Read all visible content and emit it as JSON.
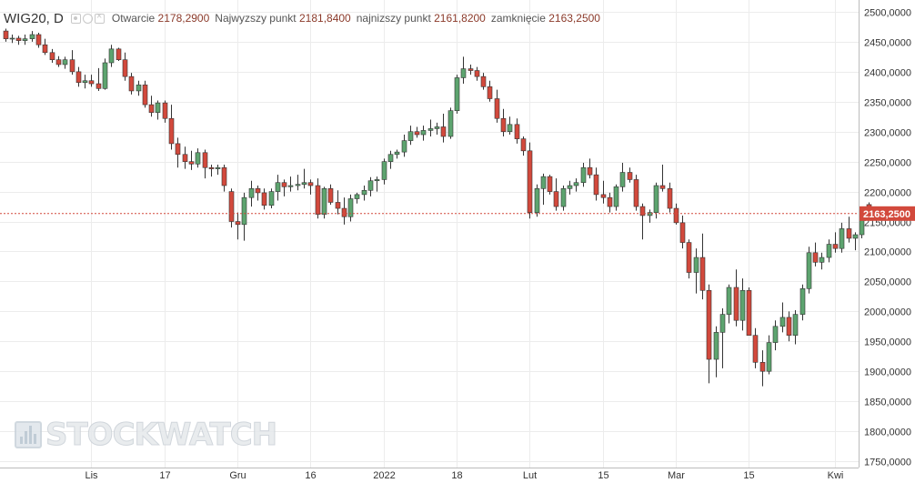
{
  "header": {
    "symbol": "WIG20, D",
    "open_label": "Otwarcie",
    "open_value": "2178,2900",
    "high_label": "Najwyzszy punkt",
    "high_value": "2181,8400",
    "low_label": "najnizszy punkt",
    "low_value": "2161,8200",
    "close_label": "zamknięcie",
    "close_value": "2163,2500"
  },
  "watermark": "STOCKWATCH",
  "colors": {
    "up": "#5da46f",
    "down": "#d2493c",
    "price_line": "#d2493c",
    "grid": "#ececec"
  },
  "chart_data": {
    "type": "candlestick",
    "title": "",
    "ylim": [
      1750,
      2500
    ],
    "yticks": [
      1750,
      1800,
      1850,
      1900,
      1950,
      2000,
      2050,
      2100,
      2150,
      2200,
      2250,
      2300,
      2350,
      2400,
      2450,
      2500
    ],
    "ytick_labels": [
      "1750,0000",
      "1800,0000",
      "1850,0000",
      "1900,0000",
      "1950,0000",
      "2000,0000",
      "2050,0000",
      "2100,0000",
      "2150,0000",
      "2200,0000",
      "2250,0000",
      "2300,0000",
      "2350,0000",
      "2400,0000",
      "2450,0000",
      "2500,0000"
    ],
    "xtick_labels": [
      {
        "label": "Lis",
        "index": 13
      },
      {
        "label": "17",
        "index": 24
      },
      {
        "label": "Gru",
        "index": 35
      },
      {
        "label": "16",
        "index": 46
      },
      {
        "label": "2022",
        "index": 57
      },
      {
        "label": "18",
        "index": 68
      },
      {
        "label": "Lut",
        "index": 79
      },
      {
        "label": "15",
        "index": 90
      },
      {
        "label": "Mar",
        "index": 101
      },
      {
        "label": "15",
        "index": 112
      },
      {
        "label": "Kwi",
        "index": 125
      }
    ],
    "last_price": 2163.25,
    "last_price_label": "2163,2500",
    "candles": [
      [
        2468,
        2472,
        2450,
        2455
      ],
      [
        2455,
        2462,
        2448,
        2456
      ],
      [
        2456,
        2460,
        2445,
        2452
      ],
      [
        2452,
        2462,
        2445,
        2455
      ],
      [
        2455,
        2468,
        2450,
        2462
      ],
      [
        2462,
        2465,
        2440,
        2445
      ],
      [
        2445,
        2455,
        2428,
        2432
      ],
      [
        2432,
        2438,
        2415,
        2420
      ],
      [
        2420,
        2426,
        2408,
        2412
      ],
      [
        2412,
        2425,
        2405,
        2420
      ],
      [
        2420,
        2436,
        2395,
        2400
      ],
      [
        2400,
        2408,
        2375,
        2382
      ],
      [
        2382,
        2395,
        2372,
        2385
      ],
      [
        2385,
        2395,
        2375,
        2380
      ],
      [
        2380,
        2406,
        2368,
        2372
      ],
      [
        2372,
        2422,
        2370,
        2415
      ],
      [
        2415,
        2445,
        2408,
        2438
      ],
      [
        2438,
        2440,
        2418,
        2420
      ],
      [
        2420,
        2432,
        2385,
        2392
      ],
      [
        2392,
        2398,
        2362,
        2368
      ],
      [
        2368,
        2385,
        2360,
        2378
      ],
      [
        2378,
        2385,
        2340,
        2345
      ],
      [
        2345,
        2360,
        2325,
        2332
      ],
      [
        2332,
        2352,
        2320,
        2348
      ],
      [
        2348,
        2352,
        2315,
        2322
      ],
      [
        2322,
        2345,
        2270,
        2280
      ],
      [
        2280,
        2290,
        2240,
        2262
      ],
      [
        2262,
        2275,
        2238,
        2250
      ],
      [
        2250,
        2268,
        2236,
        2246
      ],
      [
        2246,
        2272,
        2240,
        2265
      ],
      [
        2265,
        2270,
        2222,
        2240
      ],
      [
        2240,
        2245,
        2225,
        2238
      ],
      [
        2238,
        2245,
        2228,
        2240
      ],
      [
        2240,
        2245,
        2200,
        2210
      ],
      [
        2200,
        2205,
        2140,
        2150
      ],
      [
        2150,
        2165,
        2120,
        2145
      ],
      [
        2145,
        2198,
        2118,
        2190
      ],
      [
        2190,
        2218,
        2175,
        2205
      ],
      [
        2205,
        2210,
        2185,
        2198
      ],
      [
        2198,
        2205,
        2170,
        2177
      ],
      [
        2177,
        2205,
        2172,
        2200
      ],
      [
        2200,
        2228,
        2185,
        2215
      ],
      [
        2215,
        2220,
        2192,
        2208
      ],
      [
        2208,
        2225,
        2200,
        2210
      ],
      [
        2210,
        2228,
        2202,
        2212
      ],
      [
        2212,
        2238,
        2205,
        2215
      ],
      [
        2215,
        2220,
        2195,
        2210
      ],
      [
        2210,
        2222,
        2155,
        2162
      ],
      [
        2162,
        2208,
        2155,
        2205
      ],
      [
        2205,
        2212,
        2178,
        2182
      ],
      [
        2182,
        2202,
        2162,
        2172
      ],
      [
        2172,
        2190,
        2145,
        2158
      ],
      [
        2158,
        2195,
        2150,
        2188
      ],
      [
        2188,
        2198,
        2180,
        2195
      ],
      [
        2195,
        2210,
        2185,
        2202
      ],
      [
        2202,
        2224,
        2192,
        2218
      ],
      [
        2218,
        2225,
        2200,
        2220
      ],
      [
        2220,
        2255,
        2212,
        2250
      ],
      [
        2250,
        2268,
        2238,
        2262
      ],
      [
        2262,
        2270,
        2255,
        2266
      ],
      [
        2266,
        2295,
        2258,
        2285
      ],
      [
        2285,
        2310,
        2278,
        2300
      ],
      [
        2300,
        2308,
        2290,
        2295
      ],
      [
        2295,
        2310,
        2285,
        2302
      ],
      [
        2302,
        2320,
        2292,
        2305
      ],
      [
        2305,
        2315,
        2295,
        2308
      ],
      [
        2308,
        2330,
        2282,
        2292
      ],
      [
        2292,
        2340,
        2288,
        2335
      ],
      [
        2335,
        2395,
        2330,
        2390
      ],
      [
        2390,
        2425,
        2380,
        2405
      ],
      [
        2405,
        2412,
        2395,
        2402
      ],
      [
        2402,
        2408,
        2385,
        2392
      ],
      [
        2392,
        2398,
        2370,
        2375
      ],
      [
        2375,
        2385,
        2350,
        2355
      ],
      [
        2355,
        2370,
        2315,
        2322
      ],
      [
        2322,
        2338,
        2292,
        2300
      ],
      [
        2300,
        2325,
        2295,
        2312
      ],
      [
        2312,
        2322,
        2280,
        2288
      ],
      [
        2288,
        2292,
        2260,
        2268
      ],
      [
        2268,
        2282,
        2155,
        2165
      ],
      [
        2165,
        2212,
        2158,
        2205
      ],
      [
        2205,
        2230,
        2178,
        2225
      ],
      [
        2225,
        2228,
        2195,
        2200
      ],
      [
        2200,
        2222,
        2168,
        2175
      ],
      [
        2175,
        2210,
        2168,
        2205
      ],
      [
        2205,
        2218,
        2195,
        2210
      ],
      [
        2210,
        2222,
        2200,
        2215
      ],
      [
        2215,
        2248,
        2208,
        2240
      ],
      [
        2240,
        2255,
        2222,
        2228
      ],
      [
        2228,
        2240,
        2185,
        2195
      ],
      [
        2195,
        2218,
        2180,
        2190
      ],
      [
        2190,
        2198,
        2165,
        2175
      ],
      [
        2175,
        2212,
        2168,
        2208
      ],
      [
        2208,
        2248,
        2200,
        2232
      ],
      [
        2232,
        2240,
        2215,
        2220
      ],
      [
        2220,
        2228,
        2168,
        2175
      ],
      [
        2175,
        2180,
        2120,
        2160
      ],
      [
        2160,
        2170,
        2148,
        2165
      ],
      [
        2165,
        2215,
        2155,
        2210
      ],
      [
        2210,
        2245,
        2200,
        2205
      ],
      [
        2205,
        2215,
        2165,
        2172
      ],
      [
        2172,
        2180,
        2145,
        2148
      ],
      [
        2148,
        2160,
        2105,
        2115
      ],
      [
        2115,
        2120,
        2055,
        2065
      ],
      [
        2065,
        2105,
        2030,
        2090
      ],
      [
        2090,
        2130,
        2020,
        2035
      ],
      [
        2035,
        2045,
        1880,
        1920
      ],
      [
        1920,
        1975,
        1890,
        1965
      ],
      [
        1965,
        2005,
        1905,
        1995
      ],
      [
        1995,
        2045,
        1980,
        2040
      ],
      [
        2040,
        2070,
        1975,
        1985
      ],
      [
        1985,
        2055,
        1968,
        2035
      ],
      [
        2035,
        2040,
        1960,
        1960
      ],
      [
        1960,
        1972,
        1905,
        1915
      ],
      [
        1915,
        1935,
        1875,
        1900
      ],
      [
        1900,
        1960,
        1895,
        1948
      ],
      [
        1948,
        1985,
        1935,
        1975
      ],
      [
        1975,
        2015,
        1965,
        1990
      ],
      [
        1990,
        2000,
        1950,
        1960
      ],
      [
        1960,
        2002,
        1945,
        1995
      ],
      [
        1995,
        2045,
        1985,
        2038
      ],
      [
        2038,
        2108,
        2030,
        2098
      ],
      [
        2098,
        2115,
        2075,
        2082
      ],
      [
        2082,
        2098,
        2070,
        2090
      ],
      [
        2090,
        2120,
        2082,
        2112
      ],
      [
        2112,
        2132,
        2098,
        2105
      ],
      [
        2105,
        2148,
        2098,
        2138
      ],
      [
        2138,
        2158,
        2115,
        2122
      ],
      [
        2122,
        2132,
        2102,
        2128
      ],
      [
        2128,
        2172,
        2122,
        2165
      ],
      [
        2178.29,
        2181.84,
        2161.82,
        2163.25
      ]
    ]
  }
}
